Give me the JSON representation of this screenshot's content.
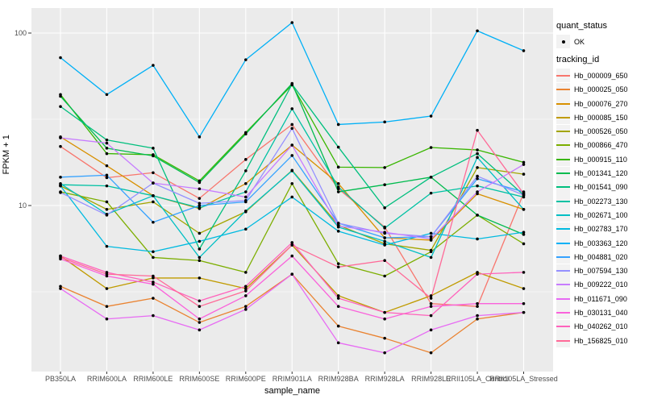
{
  "chart_data": {
    "type": "line",
    "title": "",
    "xlabel": "sample_name",
    "ylabel": "FPKM + 1",
    "y_scale": "log10",
    "ylim": [
      1.09,
      140
    ],
    "grid": true,
    "legend_position": "right",
    "panel_bg": "#EBEBEB",
    "grid_color": "#FFFFFF",
    "point_color": "#000000",
    "tick_label_color": "#4D4D4D",
    "y_ticks": [
      {
        "label": "10",
        "value": 10
      },
      {
        "label": "100",
        "value": 100
      }
    ],
    "y_minor_gridlines": [
      3.1623,
      31.623
    ],
    "categories": [
      "PB350LA",
      "RRIM600LA",
      "RRIM600LE",
      "RRIM600SE",
      "RRIM600PE",
      "RRIM901LA",
      "RRIM928BA",
      "RRIM928LA",
      "RRIM928LE",
      "RRII105LA_Control",
      "RRII105LA_Stressed"
    ],
    "series": [
      {
        "name": "Hb_000009_650",
        "color": "#F8766D",
        "values": [
          22,
          14.5,
          15.5,
          11,
          18.5,
          29.5,
          12.5,
          7.5,
          2.7,
          2.6,
          11.8
        ]
      },
      {
        "name": "Hb_000025_050",
        "color": "#EA8331",
        "values": [
          3.4,
          2.6,
          2.9,
          2.1,
          2.6,
          4,
          2,
          1.7,
          1.4,
          2.2,
          2.4
        ]
      },
      {
        "name": "Hb_000076_270",
        "color": "#D89000",
        "values": [
          25,
          17,
          11.4,
          9.6,
          13.4,
          22.4,
          13.4,
          6.5,
          6.3,
          11.7,
          9.5
        ]
      },
      {
        "name": "Hb_000085_150",
        "color": "#C09B00",
        "values": [
          5.1,
          3.3,
          3.8,
          3.8,
          3.3,
          5.9,
          3,
          2.4,
          3,
          4.1,
          3.3
        ]
      },
      {
        "name": "Hb_000526_050",
        "color": "#A3A500",
        "values": [
          13,
          9.5,
          10.5,
          6.9,
          9.2,
          16,
          7.7,
          6,
          5.5,
          16.6,
          15.2
        ]
      },
      {
        "name": "Hb_000866_470",
        "color": "#7CAE00",
        "values": [
          12,
          10.5,
          5,
          4.8,
          4.1,
          13.4,
          4.6,
          3.9,
          5.4,
          8.8,
          6
        ]
      },
      {
        "name": "Hb_000915_110",
        "color": "#39B600",
        "values": [
          44,
          20,
          19.7,
          13.9,
          26.5,
          50,
          16.7,
          16.6,
          21.7,
          21,
          17.8
        ]
      },
      {
        "name": "Hb_001341_120",
        "color": "#00BB4E",
        "values": [
          43,
          21.5,
          19.4,
          13.6,
          26,
          51,
          12,
          13.2,
          14.6,
          8.8,
          6.8
        ]
      },
      {
        "name": "Hb_001541_090",
        "color": "#00BF7D",
        "values": [
          37.5,
          24,
          21.5,
          5.6,
          15.9,
          50.5,
          21.8,
          9.7,
          14.6,
          20,
          11.5
        ]
      },
      {
        "name": "Hb_002273_130",
        "color": "#00C1A3",
        "values": [
          13.2,
          13,
          11.4,
          9.7,
          12,
          36.4,
          12.8,
          7.4,
          11.8,
          13,
          11.2
        ]
      },
      {
        "name": "Hb_002671_100",
        "color": "#00BFC4",
        "values": [
          13.4,
          8.9,
          11.4,
          5,
          9.3,
          15.9,
          7.5,
          6.2,
          5,
          19,
          9.5
        ]
      },
      {
        "name": "Hb_002783_170",
        "color": "#00BAE0",
        "values": [
          13,
          5.8,
          5.4,
          6.2,
          7.3,
          11.2,
          7.1,
          5.9,
          6.9,
          6.4,
          7
        ]
      },
      {
        "name": "Hb_003363_120",
        "color": "#00B0F6",
        "values": [
          72,
          44,
          65,
          25,
          70,
          115,
          29.5,
          30.5,
          33,
          103,
          79
        ]
      },
      {
        "name": "Hb_004881_020",
        "color": "#35A2FF",
        "values": [
          14.6,
          15,
          8,
          10,
          10.5,
          19.5,
          7.9,
          6.5,
          6.6,
          14.3,
          12
        ]
      },
      {
        "name": "Hb_007594_130",
        "color": "#9590FF",
        "values": [
          11.9,
          8.8,
          13.5,
          10.3,
          10.7,
          28,
          7.9,
          6.9,
          6.6,
          14.8,
          11.5
        ]
      },
      {
        "name": "Hb_009222_010",
        "color": "#C77CFF",
        "values": [
          24.7,
          23,
          13.5,
          12.5,
          11.2,
          22.4,
          7.6,
          7,
          6.4,
          12,
          17.3
        ]
      },
      {
        "name": "Hb_011671_090",
        "color": "#E76BF3",
        "values": [
          3.3,
          2.2,
          2.3,
          1.9,
          2.5,
          4,
          1.6,
          1.4,
          1.9,
          2.3,
          2.4
        ]
      },
      {
        "name": "Hb_030131_040",
        "color": "#FA62DB",
        "values": [
          4.9,
          3.9,
          3.5,
          2.2,
          3,
          5.1,
          2.6,
          2.2,
          2.6,
          2.7,
          2.7
        ]
      },
      {
        "name": "Hb_040262_010",
        "color": "#FF62BC",
        "values": [
          5.1,
          4.1,
          3.6,
          2.8,
          3.4,
          6.1,
          2.9,
          2.4,
          2.3,
          4,
          4.1
        ]
      },
      {
        "name": "Hb_156825_010",
        "color": "#FF6A98",
        "values": [
          5,
          4,
          3.9,
          2.6,
          3.2,
          5.9,
          4.4,
          4.8,
          2.9,
          27.3,
          11.7
        ]
      }
    ]
  },
  "legend": {
    "quant_status": {
      "title": "quant_status",
      "items": [
        {
          "label": "OK",
          "symbol": "point"
        }
      ]
    },
    "tracking_id": {
      "title": "tracking_id"
    },
    "key_bg": "#F2F2F2"
  }
}
